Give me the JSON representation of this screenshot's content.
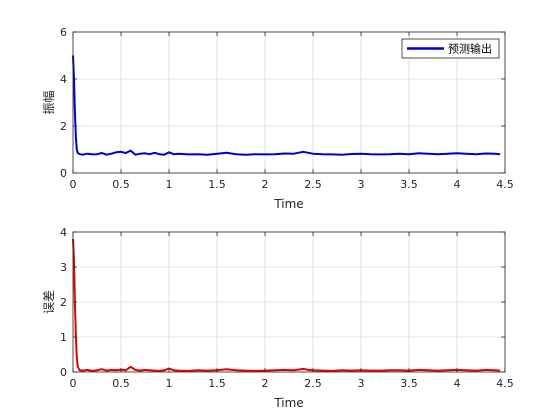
{
  "colors": {
    "top_series": "#0000cc",
    "bottom_series": "#e60000",
    "grid": "#dcdcdc",
    "axis": "#262626"
  },
  "chart_data": [
    {
      "type": "line",
      "title": "",
      "xlabel": "Time",
      "ylabel": "振幅",
      "xlim": [
        0,
        4.5
      ],
      "ylim": [
        0,
        6
      ],
      "xticks": [
        0,
        0.5,
        1,
        1.5,
        2,
        2.5,
        3,
        3.5,
        4,
        4.5
      ],
      "xtick_labels": [
        "0",
        "0.5",
        "1",
        "1.5",
        "2",
        "2.5",
        "3",
        "3.5",
        "4",
        "4.5"
      ],
      "yticks": [
        0,
        2,
        4,
        6
      ],
      "ytick_labels": [
        "0",
        "2",
        "4",
        "6"
      ],
      "grid": true,
      "legend": "top-right",
      "series": [
        {
          "name": "预测输出",
          "color": "#0000cc",
          "x": [
            0.0,
            0.01,
            0.02,
            0.03,
            0.04,
            0.05,
            0.07,
            0.1,
            0.15,
            0.2,
            0.25,
            0.3,
            0.35,
            0.4,
            0.45,
            0.5,
            0.55,
            0.6,
            0.65,
            0.7,
            0.75,
            0.8,
            0.85,
            0.9,
            0.95,
            1.0,
            1.05,
            1.1,
            1.2,
            1.3,
            1.4,
            1.5,
            1.6,
            1.7,
            1.8,
            1.9,
            2.0,
            2.1,
            2.2,
            2.3,
            2.4,
            2.45,
            2.5,
            2.6,
            2.7,
            2.8,
            2.9,
            3.0,
            3.1,
            3.2,
            3.3,
            3.4,
            3.5,
            3.6,
            3.7,
            3.8,
            3.9,
            4.0,
            4.1,
            4.2,
            4.3,
            4.4,
            4.45
          ],
          "y": [
            5.0,
            4.0,
            2.6,
            1.5,
            1.0,
            0.85,
            0.8,
            0.78,
            0.82,
            0.79,
            0.8,
            0.85,
            0.78,
            0.82,
            0.88,
            0.9,
            0.85,
            0.95,
            0.78,
            0.82,
            0.84,
            0.8,
            0.86,
            0.8,
            0.78,
            0.88,
            0.8,
            0.82,
            0.79,
            0.8,
            0.78,
            0.82,
            0.86,
            0.8,
            0.78,
            0.8,
            0.79,
            0.8,
            0.83,
            0.82,
            0.9,
            0.86,
            0.82,
            0.8,
            0.79,
            0.78,
            0.81,
            0.82,
            0.8,
            0.79,
            0.8,
            0.82,
            0.8,
            0.84,
            0.82,
            0.8,
            0.82,
            0.84,
            0.82,
            0.8,
            0.83,
            0.82,
            0.8
          ]
        }
      ]
    },
    {
      "type": "line",
      "title": "",
      "xlabel": "Time",
      "ylabel": "误差",
      "xlim": [
        0,
        4.5
      ],
      "ylim": [
        0,
        4
      ],
      "xticks": [
        0,
        0.5,
        1,
        1.5,
        2,
        2.5,
        3,
        3.5,
        4,
        4.5
      ],
      "xtick_labels": [
        "0",
        "0.5",
        "1",
        "1.5",
        "2",
        "2.5",
        "3",
        "3.5",
        "4",
        "4.5"
      ],
      "yticks": [
        0,
        1,
        2,
        3,
        4
      ],
      "ytick_labels": [
        "0",
        "1",
        "2",
        "3",
        "4"
      ],
      "grid": true,
      "series": [
        {
          "color": "#e60000",
          "x": [
            0.0,
            0.01,
            0.02,
            0.03,
            0.04,
            0.05,
            0.07,
            0.1,
            0.15,
            0.2,
            0.25,
            0.3,
            0.35,
            0.4,
            0.45,
            0.5,
            0.55,
            0.6,
            0.65,
            0.7,
            0.75,
            0.8,
            0.85,
            0.9,
            0.95,
            1.0,
            1.05,
            1.1,
            1.2,
            1.3,
            1.4,
            1.5,
            1.6,
            1.7,
            1.8,
            1.9,
            2.0,
            2.1,
            2.2,
            2.3,
            2.4,
            2.45,
            2.5,
            2.6,
            2.7,
            2.8,
            2.9,
            3.0,
            3.1,
            3.2,
            3.3,
            3.4,
            3.5,
            3.6,
            3.7,
            3.8,
            3.9,
            4.0,
            4.1,
            4.2,
            4.3,
            4.4,
            4.45
          ],
          "y": [
            3.8,
            3.2,
            2.0,
            1.0,
            0.4,
            0.15,
            0.05,
            0.04,
            0.06,
            0.03,
            0.05,
            0.08,
            0.04,
            0.06,
            0.05,
            0.07,
            0.05,
            0.15,
            0.06,
            0.04,
            0.06,
            0.05,
            0.04,
            0.03,
            0.05,
            0.1,
            0.05,
            0.04,
            0.03,
            0.05,
            0.04,
            0.05,
            0.08,
            0.05,
            0.04,
            0.03,
            0.04,
            0.05,
            0.06,
            0.05,
            0.09,
            0.06,
            0.05,
            0.04,
            0.03,
            0.05,
            0.04,
            0.05,
            0.04,
            0.04,
            0.05,
            0.05,
            0.04,
            0.06,
            0.05,
            0.04,
            0.05,
            0.06,
            0.05,
            0.04,
            0.06,
            0.05,
            0.04
          ]
        }
      ]
    }
  ]
}
